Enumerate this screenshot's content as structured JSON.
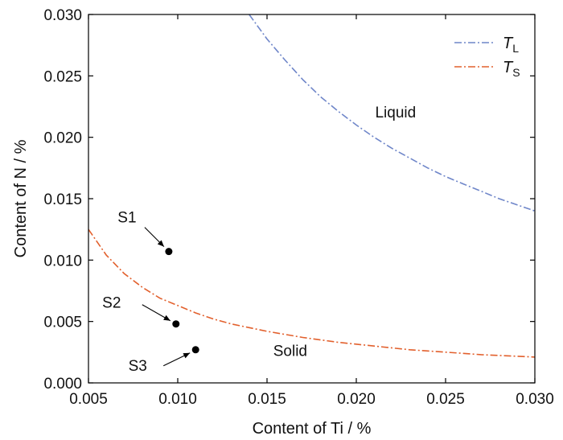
{
  "chart_data": {
    "type": "line",
    "xlabel": "Content of Ti / %",
    "ylabel": "Content of  N / %",
    "xlim": [
      0.005,
      0.03
    ],
    "ylim": [
      0.0,
      0.03
    ],
    "x_ticks": [
      "0.005",
      "0.010",
      "0.015",
      "0.020",
      "0.025",
      "0.030"
    ],
    "y_ticks": [
      "0.000",
      "0.005",
      "0.010",
      "0.015",
      "0.020",
      "0.025",
      "0.030"
    ],
    "grid": false,
    "legend_position": "top-right",
    "series": [
      {
        "name": "T",
        "name_sub": "L",
        "color": "#6f86c9",
        "style": "dash-dot",
        "x": [
          0.014,
          0.0145,
          0.015,
          0.016,
          0.017,
          0.018,
          0.019,
          0.02,
          0.021,
          0.022,
          0.023,
          0.024,
          0.025,
          0.026,
          0.027,
          0.028,
          0.029,
          0.03
        ],
        "y": [
          0.03,
          0.029,
          0.028,
          0.0263,
          0.0247,
          0.0233,
          0.0221,
          0.021,
          0.02,
          0.0191,
          0.0183,
          0.0175,
          0.0168,
          0.0162,
          0.0156,
          0.015,
          0.0145,
          0.014
        ]
      },
      {
        "name": "T",
        "name_sub": "S",
        "color": "#e2602d",
        "style": "dash-dot",
        "x": [
          0.005,
          0.006,
          0.007,
          0.008,
          0.009,
          0.01,
          0.011,
          0.012,
          0.013,
          0.014,
          0.015,
          0.017,
          0.019,
          0.021,
          0.023,
          0.025,
          0.027,
          0.03
        ],
        "y": [
          0.0125,
          0.0104,
          0.0089,
          0.0078,
          0.0069,
          0.0063,
          0.0057,
          0.0052,
          0.0048,
          0.0045,
          0.0042,
          0.0037,
          0.0033,
          0.003,
          0.0027,
          0.0025,
          0.0023,
          0.0021
        ]
      }
    ],
    "points": [
      {
        "label": "S1",
        "x": 0.0095,
        "y": 0.0107
      },
      {
        "label": "S2",
        "x": 0.0099,
        "y": 0.0048
      },
      {
        "label": "S3",
        "x": 0.011,
        "y": 0.0027
      }
    ],
    "region_labels": [
      {
        "text": "Liquid",
        "x": 0.0222,
        "y": 0.0216
      },
      {
        "text": "Solid",
        "x": 0.0163,
        "y": 0.0022
      }
    ]
  }
}
